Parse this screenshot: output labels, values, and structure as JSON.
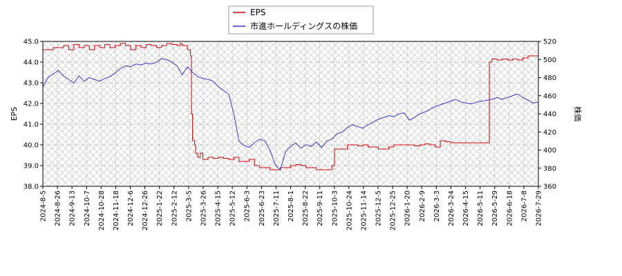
{
  "chart_data": {
    "type": "line",
    "title": "",
    "x_ticks": [
      "2024-8-5",
      "2024-8-26",
      "2024-9-13",
      "2024-10-7",
      "2024-10-28",
      "2024-11-18",
      "2024-12-6",
      "2024-12-26",
      "2025-1-22",
      "2025-2-12",
      "2025-3-5",
      "2025-3-26",
      "2025-4-15",
      "2025-5-12",
      "2025-6-3",
      "2025-6-23",
      "2025-7-11",
      "2025-8-1",
      "2025-8-22",
      "2025-9-11",
      "2025-10-3",
      "2025-10-24",
      "2025-11-14",
      "2025-12-5",
      "2025-12-25",
      "2026-1-20",
      "2026-2-9",
      "2026-3-3",
      "2026-3-24",
      "2026-4-15",
      "2026-5-11",
      "2026-5-29",
      "2026-6-18",
      "2026-7-8",
      "2026-7-29"
    ],
    "y_left": {
      "label": "EPS",
      "ylim": [
        38.0,
        45.0
      ],
      "ticks": [
        "38.0",
        "39.0",
        "40.0",
        "41.0",
        "42.0",
        "43.0",
        "44.0",
        "45.0"
      ]
    },
    "y_right": {
      "label": "株価",
      "ylim": [
        360,
        520
      ],
      "ticks": [
        "360",
        "380",
        "400",
        "420",
        "440",
        "460",
        "480",
        "500",
        "520"
      ]
    },
    "grid": true,
    "legend_position": "top-center",
    "series": [
      {
        "name": "EPS",
        "axis": "left",
        "color": "#cc0000",
        "points": [
          [
            0,
            44.6
          ],
          [
            2,
            44.7
          ],
          [
            4,
            44.8
          ],
          [
            5,
            44.6
          ],
          [
            6,
            44.85
          ],
          [
            7,
            44.7
          ],
          [
            8,
            44.8
          ],
          [
            9,
            44.6
          ],
          [
            10,
            44.8
          ],
          [
            11,
            44.7
          ],
          [
            12,
            44.85
          ],
          [
            13,
            44.7
          ],
          [
            14,
            44.8
          ],
          [
            15,
            44.9
          ],
          [
            16,
            44.8
          ],
          [
            17,
            44.6
          ],
          [
            18,
            44.8
          ],
          [
            19,
            44.7
          ],
          [
            20,
            44.85
          ],
          [
            21,
            44.8
          ],
          [
            22,
            44.7
          ],
          [
            23,
            44.8
          ],
          [
            24,
            44.9
          ],
          [
            25,
            44.85
          ],
          [
            26,
            44.8
          ],
          [
            26.6,
            44.9
          ],
          [
            27,
            44.8
          ],
          [
            28,
            44.6
          ],
          [
            28.6,
            44.3
          ],
          [
            28.8,
            41.5
          ],
          [
            29,
            40.2
          ],
          [
            29.4,
            40.0
          ],
          [
            29.6,
            39.6
          ],
          [
            30,
            39.4
          ],
          [
            30.5,
            39.6
          ],
          [
            31,
            39.3
          ],
          [
            32,
            39.4
          ],
          [
            33,
            39.35
          ],
          [
            34,
            39.4
          ],
          [
            35,
            39.35
          ],
          [
            36,
            39.3
          ],
          [
            37,
            39.4
          ],
          [
            38,
            39.2
          ],
          [
            39,
            39.2
          ],
          [
            40,
            39.3
          ],
          [
            41,
            39.0
          ],
          [
            42,
            38.9
          ],
          [
            43,
            38.9
          ],
          [
            44,
            38.8
          ],
          [
            45,
            38.8
          ],
          [
            46,
            38.9
          ],
          [
            47,
            38.9
          ],
          [
            48,
            39.0
          ],
          [
            49,
            39.05
          ],
          [
            50,
            39.0
          ],
          [
            51,
            38.9
          ],
          [
            52,
            38.9
          ],
          [
            53,
            38.8
          ],
          [
            54,
            38.8
          ],
          [
            55,
            38.8
          ],
          [
            56,
            39.0
          ],
          [
            56.5,
            39.8
          ],
          [
            57,
            39.8
          ],
          [
            58,
            39.8
          ],
          [
            59,
            40.0
          ],
          [
            60,
            40.0
          ],
          [
            61,
            39.95
          ],
          [
            62,
            40.0
          ],
          [
            63,
            39.9
          ],
          [
            64,
            39.9
          ],
          [
            65,
            39.8
          ],
          [
            66,
            39.8
          ],
          [
            67,
            39.9
          ],
          [
            68,
            40.0
          ],
          [
            69,
            40.0
          ],
          [
            70,
            40.0
          ],
          [
            71,
            40.0
          ],
          [
            72,
            39.95
          ],
          [
            73,
            40.0
          ],
          [
            74,
            40.05
          ],
          [
            75,
            40.0
          ],
          [
            76,
            39.9
          ],
          [
            77,
            40.2
          ],
          [
            78,
            40.15
          ],
          [
            79,
            40.1
          ],
          [
            80,
            40.1
          ],
          [
            81,
            40.1
          ],
          [
            82,
            40.1
          ],
          [
            83,
            40.1
          ],
          [
            84,
            40.1
          ],
          [
            85,
            40.1
          ],
          [
            86,
            40.1
          ],
          [
            86.5,
            44.0
          ],
          [
            87,
            44.15
          ],
          [
            88,
            44.1
          ],
          [
            89,
            44.15
          ],
          [
            90,
            44.1
          ],
          [
            91,
            44.15
          ],
          [
            92,
            44.1
          ],
          [
            93,
            44.2
          ],
          [
            94,
            44.3
          ],
          [
            95,
            44.3
          ],
          [
            96,
            44.3
          ]
        ]
      },
      {
        "name": "市進ホールディングスの株価",
        "axis": "right",
        "color": "#3333cc",
        "points": [
          [
            0,
            470
          ],
          [
            1,
            480
          ],
          [
            2,
            484
          ],
          [
            3,
            488
          ],
          [
            4,
            482
          ],
          [
            5,
            478
          ],
          [
            6,
            474
          ],
          [
            7,
            482
          ],
          [
            8,
            476
          ],
          [
            9,
            480
          ],
          [
            10,
            478
          ],
          [
            11,
            476
          ],
          [
            12,
            479
          ],
          [
            13,
            481
          ],
          [
            14,
            485
          ],
          [
            15,
            490
          ],
          [
            16,
            493
          ],
          [
            17,
            492
          ],
          [
            18,
            495
          ],
          [
            19,
            494
          ],
          [
            20,
            496
          ],
          [
            21,
            495
          ],
          [
            22,
            497
          ],
          [
            23,
            501
          ],
          [
            24,
            500
          ],
          [
            25,
            497
          ],
          [
            26,
            493
          ],
          [
            27,
            483
          ],
          [
            28,
            492
          ],
          [
            29,
            486
          ],
          [
            30,
            481
          ],
          [
            31,
            479
          ],
          [
            32,
            478
          ],
          [
            33,
            476
          ],
          [
            34,
            470
          ],
          [
            35,
            466
          ],
          [
            36,
            462
          ],
          [
            37,
            440
          ],
          [
            38,
            410
          ],
          [
            39,
            405
          ],
          [
            40,
            403
          ],
          [
            41,
            408
          ],
          [
            42,
            412
          ],
          [
            43,
            410
          ],
          [
            44,
            400
          ],
          [
            45,
            384
          ],
          [
            46,
            378
          ],
          [
            47,
            398
          ],
          [
            48,
            404
          ],
          [
            49,
            408
          ],
          [
            50,
            402
          ],
          [
            51,
            406
          ],
          [
            52,
            404
          ],
          [
            53,
            409
          ],
          [
            54,
            403
          ],
          [
            55,
            410
          ],
          [
            56,
            412
          ],
          [
            57,
            418
          ],
          [
            58,
            420
          ],
          [
            59,
            425
          ],
          [
            60,
            428
          ],
          [
            61,
            426
          ],
          [
            62,
            424
          ],
          [
            63,
            428
          ],
          [
            64,
            431
          ],
          [
            65,
            434
          ],
          [
            66,
            436
          ],
          [
            67,
            438
          ],
          [
            68,
            437
          ],
          [
            69,
            440
          ],
          [
            70,
            441
          ],
          [
            71,
            433
          ],
          [
            72,
            436
          ],
          [
            73,
            440
          ],
          [
            74,
            442
          ],
          [
            75,
            445
          ],
          [
            76,
            448
          ],
          [
            77,
            450
          ],
          [
            78,
            452
          ],
          [
            79,
            454
          ],
          [
            80,
            456
          ],
          [
            81,
            453
          ],
          [
            82,
            452
          ],
          [
            83,
            451
          ],
          [
            84,
            453
          ],
          [
            85,
            454
          ],
          [
            86,
            455
          ],
          [
            87,
            456
          ],
          [
            88,
            458
          ],
          [
            89,
            456
          ],
          [
            90,
            458
          ],
          [
            91,
            460
          ],
          [
            92,
            462
          ],
          [
            93,
            458
          ],
          [
            94,
            455
          ],
          [
            95,
            452
          ],
          [
            96,
            453
          ]
        ]
      }
    ]
  }
}
